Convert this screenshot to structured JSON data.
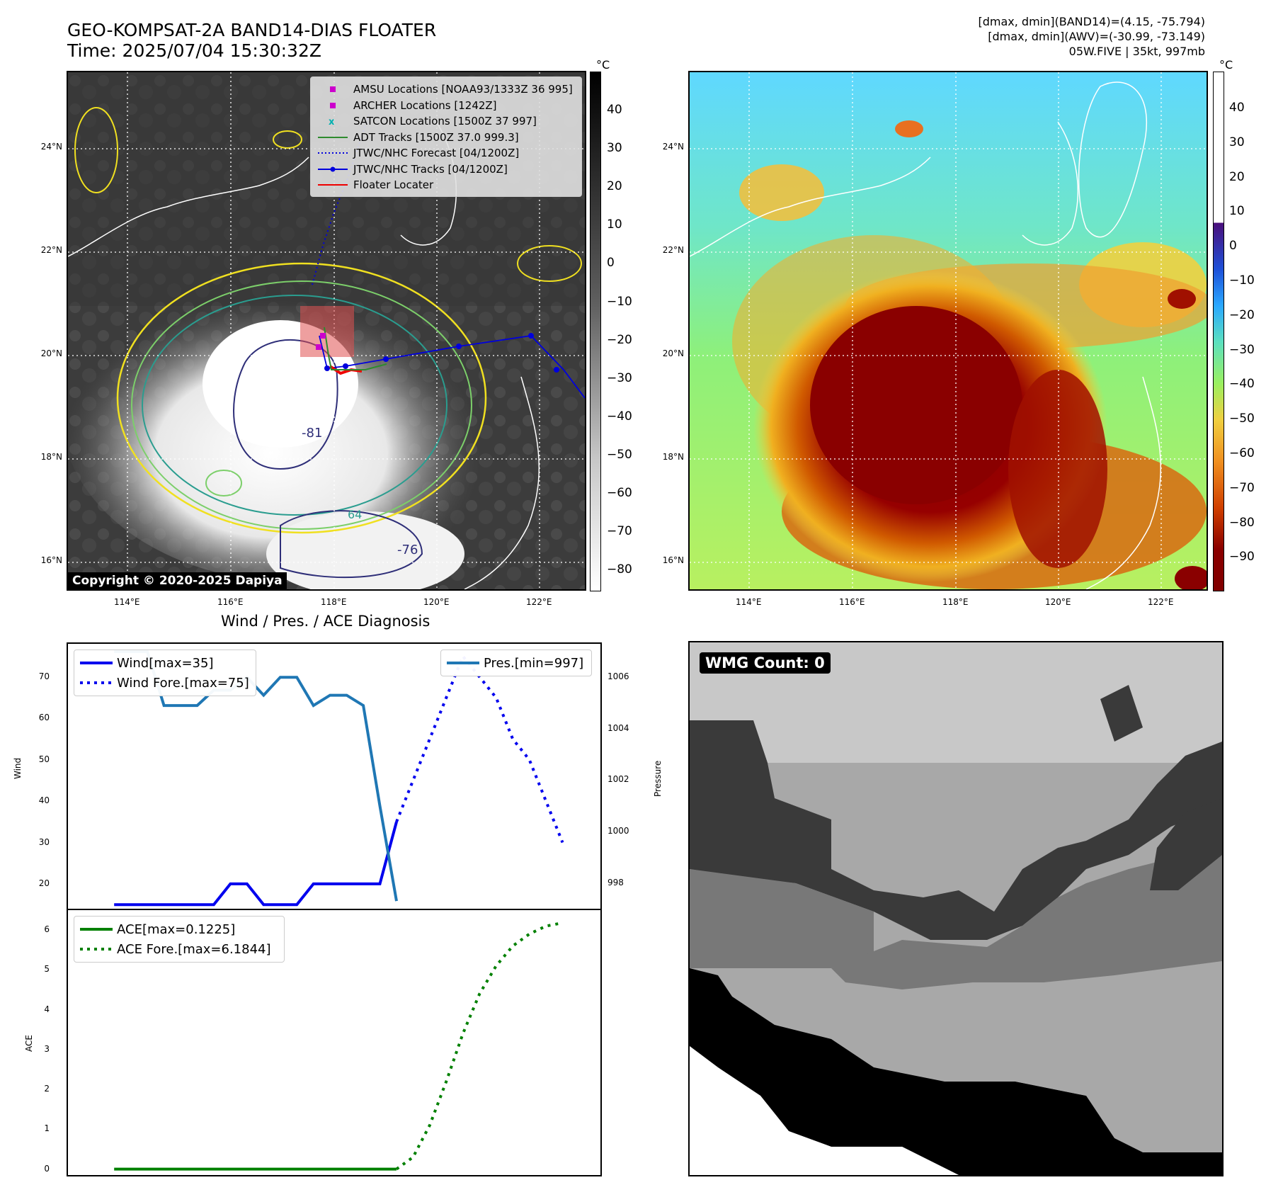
{
  "header": {
    "title_line1": "GEO-KOMPSAT-2A BAND14-DIAS FLOATER",
    "title_line2": "Time: 2025/07/04 15:30:32Z",
    "right_line1": "[dmax, dmin](BAND14)=(4.15, -75.794)",
    "right_line2": "[dmax, dmin](AWV)=(-30.99, -73.149)",
    "right_line3": "05W.FIVE | 35kt, 997mb"
  },
  "map_ir": {
    "lat_labels": [
      "24°N",
      "22°N",
      "20°N",
      "18°N",
      "16°N"
    ],
    "lon_labels": [
      "114°E",
      "116°E",
      "118°E",
      "120°E",
      "122°E"
    ],
    "copyright": "Copyright © 2020-2025 Dapiya",
    "contour_labels": [
      "-81",
      "-76",
      "64"
    ],
    "legend": [
      {
        "label": "AMSU Locations [NOAA93/1333Z 36 995]",
        "symbol": "square",
        "color": "#cc00cc"
      },
      {
        "label": "ARCHER Locations [1242Z]",
        "symbol": "square",
        "color": "#cc00cc"
      },
      {
        "label": "SATCON Locations [1500Z 37 997]",
        "symbol": "x",
        "color": "#00b0b0"
      },
      {
        "label": "ADT Tracks [1500Z 37.0 999.3]",
        "symbol": "line",
        "color": "#2e8b2e"
      },
      {
        "label": "JTWC/NHC Forecast [04/1200Z]",
        "symbol": "dotted",
        "color": "#0000dd"
      },
      {
        "label": "JTWC/NHC Tracks [04/1200Z]",
        "symbol": "line-dot",
        "color": "#0000dd"
      },
      {
        "label": "Floater Locater",
        "symbol": "line",
        "color": "#ee0000"
      }
    ],
    "colorbar": {
      "unit": "°C",
      "ticks": [
        "40",
        "30",
        "20",
        "10",
        "0",
        "−10",
        "−20",
        "−30",
        "−40",
        "−50",
        "−60",
        "−70",
        "−80"
      ]
    }
  },
  "map_awv": {
    "lat_labels": [
      "24°N",
      "22°N",
      "20°N",
      "18°N",
      "16°N"
    ],
    "lon_labels": [
      "114°E",
      "116°E",
      "118°E",
      "120°E",
      "122°E"
    ],
    "colorbar": {
      "unit": "°C",
      "ticks": [
        "40",
        "30",
        "20",
        "10",
        "0",
        "−10",
        "−20",
        "−30",
        "−40",
        "−50",
        "−60",
        "−70",
        "−80",
        "−90"
      ]
    }
  },
  "wmg": {
    "label": "WMG Count: 0"
  },
  "chart_data": [
    {
      "type": "line",
      "title": "Wind / Pres. / ACE Diagnosis",
      "ylabel": "Wind",
      "ylabel_right": "Pressure",
      "ylim": [
        14,
        78
      ],
      "ylim_right": [
        997,
        1007.3
      ],
      "yticks": [
        20,
        30,
        40,
        50,
        60,
        70
      ],
      "yticks_right": [
        998,
        1000,
        1002,
        1004,
        1006
      ],
      "series": [
        {
          "name": "Wind[max=35]",
          "style": "solid",
          "color": "#0000ee",
          "axis": "left",
          "x": [
            0,
            6,
            7,
            8,
            9,
            10,
            11,
            12,
            13,
            14,
            15,
            16,
            17
          ],
          "values": [
            15,
            15,
            20,
            20,
            15,
            15,
            15,
            20,
            20,
            20,
            20,
            20,
            35
          ]
        },
        {
          "name": "Wind Fore.[max=75]",
          "style": "dotted",
          "color": "#0000ee",
          "axis": "left",
          "x": [
            17,
            18,
            19,
            20,
            21,
            22,
            23,
            24,
            25,
            26,
            27
          ],
          "values": [
            35,
            45,
            55,
            65,
            75,
            70,
            65,
            55,
            50,
            40,
            30
          ]
        },
        {
          "name": "Pres.[min=997]",
          "style": "solid",
          "color": "#1f77b4",
          "axis": "right",
          "x": [
            0,
            2,
            3,
            4,
            5,
            6,
            7,
            8,
            9,
            10,
            11,
            12,
            13,
            14,
            15,
            16,
            17
          ],
          "values": [
            1007,
            1007,
            1004.9,
            1004.9,
            1004.9,
            1005.5,
            1005.5,
            1006,
            1005.3,
            1006,
            1006,
            1004.9,
            1005.3,
            1005.3,
            1004.9,
            1001.0,
            997.3
          ]
        }
      ]
    },
    {
      "type": "line",
      "ylabel": "ACE",
      "ylim": [
        -0.15,
        6.5
      ],
      "yticks": [
        0,
        1,
        2,
        3,
        4,
        5,
        6
      ],
      "series": [
        {
          "name": "ACE[max=0.1225]",
          "style": "solid",
          "color": "#008000",
          "x": [
            0,
            17
          ],
          "values": [
            0,
            0
          ]
        },
        {
          "name": "ACE Fore.[max=6.1844]",
          "style": "dotted",
          "color": "#008000",
          "x": [
            17,
            18,
            19,
            20,
            21,
            22,
            23,
            24,
            25,
            26,
            27
          ],
          "values": [
            0,
            0.3,
            1.1,
            2.2,
            3.4,
            4.4,
            5.1,
            5.6,
            5.9,
            6.1,
            6.18
          ]
        }
      ]
    }
  ]
}
